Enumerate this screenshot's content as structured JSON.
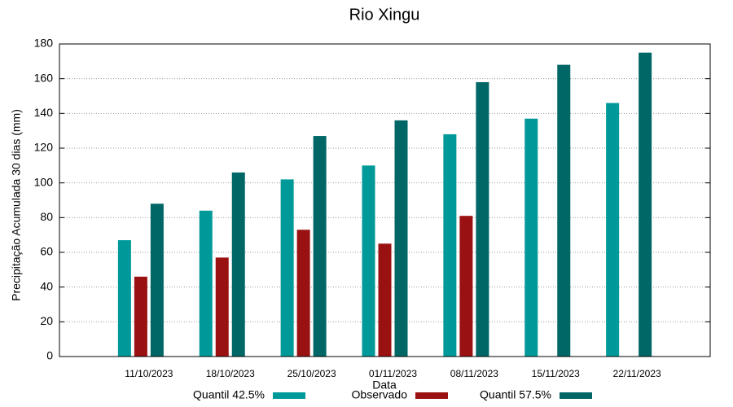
{
  "chart_data": {
    "type": "bar",
    "title": "Rio Xingu",
    "x_label": "Data",
    "y_label": "Precipitação Acumulada 30 dias (mm)",
    "categories": [
      "11/10/2023",
      "18/10/2023",
      "25/10/2023",
      "01/11/2023",
      "08/11/2023",
      "15/11/2023",
      "22/11/2023"
    ],
    "series": [
      {
        "name": "Quantil 42.5%",
        "color": "#009999",
        "values": [
          67,
          84,
          102,
          110,
          128,
          137,
          146
        ]
      },
      {
        "name": "Observado",
        "color": "#991111",
        "values": [
          46,
          57,
          73,
          65,
          81,
          null,
          null
        ]
      },
      {
        "name": "Quantil 57.5%",
        "color": "#006666",
        "values": [
          88,
          106,
          127,
          136,
          158,
          168,
          175
        ]
      }
    ],
    "ylim": [
      0,
      180
    ],
    "yticks": [
      0,
      20,
      40,
      60,
      80,
      100,
      120,
      140,
      160,
      180
    ],
    "grid": true
  }
}
